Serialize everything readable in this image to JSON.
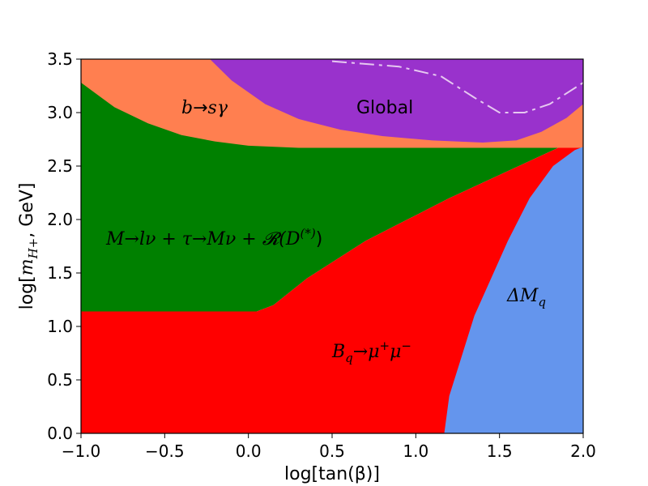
{
  "chart_data": {
    "type": "area",
    "title": "",
    "xlabel": "log[tan(β)]",
    "ylabel": "log[m_H+ , GeV]",
    "ylabel_main": "log[",
    "ylabel_sym": "m",
    "ylabel_sub": "H+",
    "ylabel_tail": ", GeV]",
    "xlim": [
      -1.0,
      2.0
    ],
    "ylim": [
      0.0,
      3.5
    ],
    "x_ticks": [
      "−1.0",
      "−0.5",
      "0.0",
      "0.5",
      "1.0",
      "1.5",
      "2.0"
    ],
    "x_tick_values": [
      -1.0,
      -0.5,
      0.0,
      0.5,
      1.0,
      1.5,
      2.0
    ],
    "y_ticks": [
      "0.0",
      "0.5",
      "1.0",
      "1.5",
      "2.0",
      "2.5",
      "3.0",
      "3.5"
    ],
    "y_tick_values": [
      0.0,
      0.5,
      1.0,
      1.5,
      2.0,
      2.5,
      3.0,
      3.5
    ],
    "grid": false,
    "regions": [
      {
        "name": "b→sγ",
        "color": "#ff7f50",
        "boundary": [
          [
            -1.0,
            3.5
          ],
          [
            2.0,
            3.5
          ],
          [
            2.0,
            2.67
          ],
          [
            -1.0,
            2.67
          ]
        ]
      },
      {
        "name": "M→lν + τ→Mν + R(D(*))",
        "color": "#008000",
        "boundary": [
          [
            -1.0,
            3.28
          ],
          [
            -0.8,
            3.05
          ],
          [
            -0.6,
            2.9
          ],
          [
            -0.4,
            2.79
          ],
          [
            -0.2,
            2.73
          ],
          [
            0.0,
            2.69
          ],
          [
            0.3,
            2.67
          ],
          [
            1.2,
            2.67
          ],
          [
            1.85,
            2.67
          ],
          [
            1.2,
            2.2
          ],
          [
            0.7,
            1.8
          ],
          [
            0.35,
            1.45
          ],
          [
            0.15,
            1.2
          ],
          [
            0.05,
            1.14
          ],
          [
            -1.0,
            1.14
          ]
        ]
      },
      {
        "name": "Bq→μ+μ−",
        "color": "#ff0000",
        "boundary": [
          [
            -1.0,
            1.14
          ],
          [
            0.05,
            1.14
          ],
          [
            0.15,
            1.2
          ],
          [
            0.35,
            1.45
          ],
          [
            0.7,
            1.8
          ],
          [
            1.2,
            2.2
          ],
          [
            1.85,
            2.67
          ],
          [
            2.0,
            2.67
          ],
          [
            2.0,
            0.0
          ],
          [
            -1.0,
            0.0
          ]
        ]
      },
      {
        "name": "ΔMq",
        "color": "#6495ed",
        "boundary": [
          [
            1.17,
            0.0
          ],
          [
            1.2,
            0.35
          ],
          [
            1.27,
            0.7
          ],
          [
            1.35,
            1.1
          ],
          [
            1.45,
            1.45
          ],
          [
            1.55,
            1.8
          ],
          [
            1.68,
            2.2
          ],
          [
            1.82,
            2.5
          ],
          [
            1.95,
            2.65
          ],
          [
            2.0,
            2.68
          ],
          [
            2.0,
            0.0
          ]
        ]
      },
      {
        "name": "Global",
        "color": "#9932cc",
        "boundary": [
          [
            -0.23,
            3.5
          ],
          [
            -0.1,
            3.3
          ],
          [
            0.1,
            3.08
          ],
          [
            0.3,
            2.94
          ],
          [
            0.55,
            2.84
          ],
          [
            0.8,
            2.78
          ],
          [
            1.1,
            2.74
          ],
          [
            1.4,
            2.72
          ],
          [
            1.6,
            2.74
          ],
          [
            1.75,
            2.82
          ],
          [
            1.9,
            2.95
          ],
          [
            2.0,
            3.08
          ],
          [
            2.0,
            3.5
          ]
        ]
      }
    ],
    "dashed_line": {
      "color": "#e6c8f0",
      "points": [
        [
          0.5,
          3.48
        ],
        [
          0.9,
          3.43
        ],
        [
          1.15,
          3.34
        ],
        [
          1.35,
          3.14
        ],
        [
          1.5,
          3.0
        ],
        [
          1.65,
          3.0
        ],
        [
          1.8,
          3.08
        ],
        [
          2.0,
          3.28
        ]
      ]
    },
    "annotations": [
      {
        "id": "bsg",
        "text_main": "b",
        "text_arrow": "→",
        "text_tail": "sγ",
        "x": -0.42,
        "y": 2.98
      },
      {
        "id": "global",
        "text": "Global",
        "x": 0.65,
        "y": 2.98
      },
      {
        "id": "meson",
        "text": "M→lν + τ→Mν + 𝓡(D",
        "text_sup": "(*)",
        "text_close": ")",
        "x": -0.86,
        "y": 1.75
      },
      {
        "id": "bmumu",
        "text": "B",
        "text_sub": "q",
        "text_tail": "→μ",
        "text_sup1": "+",
        "text_mid": "μ",
        "text_sup2": "−",
        "x": 0.5,
        "y": 0.7
      },
      {
        "id": "dmq",
        "text": "ΔM",
        "text_sub": "q",
        "x": 1.56,
        "y": 1.23
      }
    ]
  }
}
